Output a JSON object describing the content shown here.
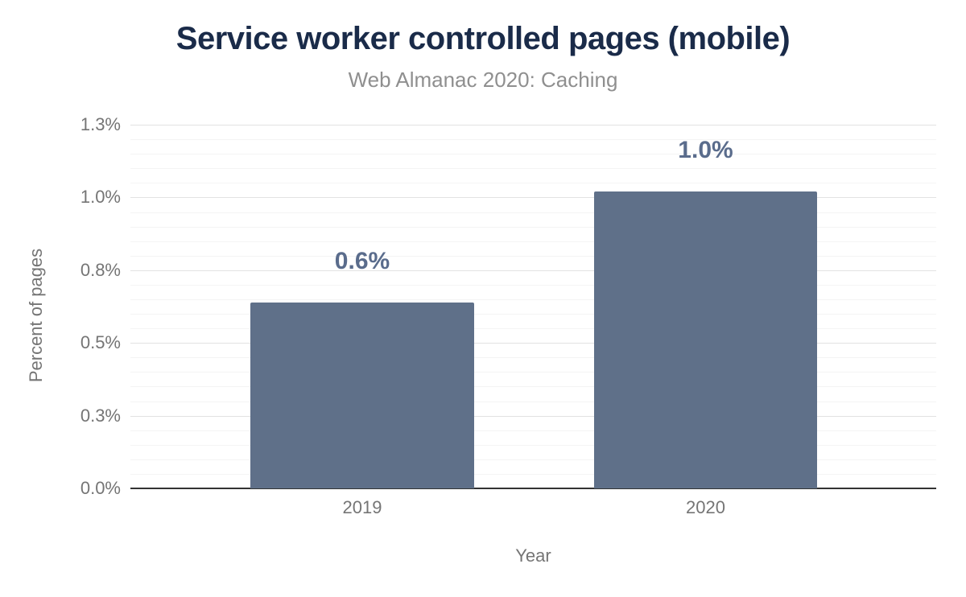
{
  "chart_data": {
    "type": "bar",
    "title": "Service worker controlled pages (mobile)",
    "subtitle": "Web Almanac 2020: Caching",
    "xlabel": "Year",
    "ylabel": "Percent of pages",
    "categories": [
      "2019",
      "2020"
    ],
    "values": [
      0.64,
      1.02
    ],
    "value_labels": [
      "0.6%",
      "1.0%"
    ],
    "ylim": [
      0,
      1.25
    ],
    "y_major_step": 0.25,
    "y_minor_step": 0.05,
    "y_tick_labels": [
      "0.0%",
      "0.3%",
      "0.5%",
      "0.8%",
      "1.0%",
      "1.3%"
    ],
    "grid": true,
    "legend": "none",
    "bar_centers_frac": [
      0.2877,
      0.7138
    ],
    "bar_width_frac": 0.277,
    "colors": {
      "bar": "#5f7089",
      "data_label": "#5a6c8c",
      "title": "#1a2b49",
      "subtitle": "#8f8f8f",
      "axis_text": "#757575",
      "grid_major": "#e2e2e2",
      "grid_minor": "#f4f4f4",
      "baseline": "#333333",
      "background": "#ffffff"
    }
  }
}
